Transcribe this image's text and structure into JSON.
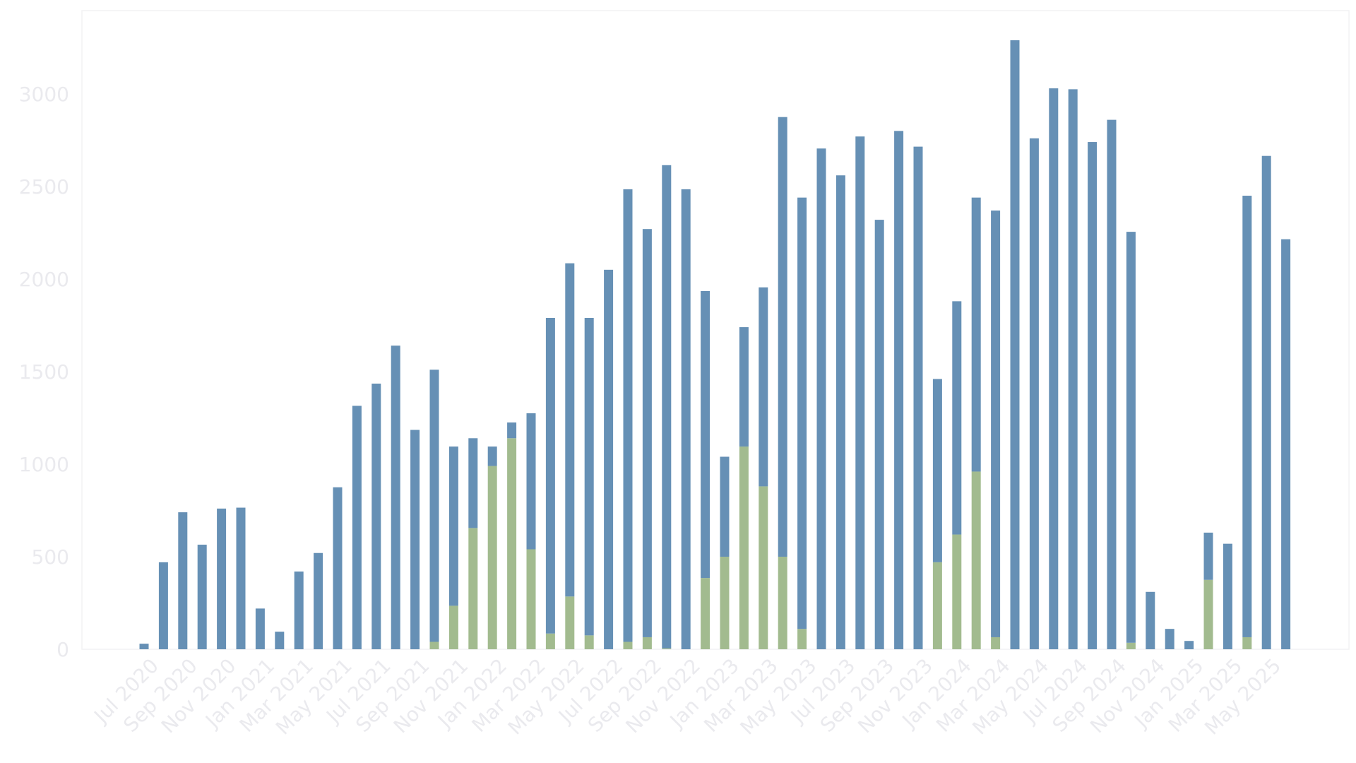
{
  "chart_data": {
    "type": "bar",
    "stacked": true,
    "title": "",
    "xlabel": "",
    "ylabel": "",
    "ylim": [
      0,
      3450
    ],
    "yticks": [
      0,
      500,
      1000,
      1500,
      2000,
      2500,
      3000
    ],
    "grid": false,
    "legend": "none",
    "categories": [
      "Jul 2020",
      "Aug 2020",
      "Sep 2020",
      "Oct 2020",
      "Nov 2020",
      "Dec 2020",
      "Jan 2021",
      "Feb 2021",
      "Mar 2021",
      "Apr 2021",
      "May 2021",
      "Jun 2021",
      "Jul 2021",
      "Aug 2021",
      "Sep 2021",
      "Oct 2021",
      "Nov 2021",
      "Dec 2021",
      "Jan 2022",
      "Feb 2022",
      "Mar 2022",
      "Apr 2022",
      "May 2022",
      "Jun 2022",
      "Jul 2022",
      "Aug 2022",
      "Sep 2022",
      "Oct 2022",
      "Nov 2022",
      "Dec 2022",
      "Jan 2023",
      "Feb 2023",
      "Mar 2023",
      "Apr 2023",
      "May 2023",
      "Jun 2023",
      "Jul 2023",
      "Aug 2023",
      "Sep 2023",
      "Oct 2023",
      "Nov 2023",
      "Dec 2023",
      "Jan 2024",
      "Feb 2024",
      "Mar 2024",
      "Apr 2024",
      "May 2024",
      "Jun 2024",
      "Jul 2024",
      "Aug 2024",
      "Sep 2024",
      "Oct 2024",
      "Nov 2024",
      "Dec 2024",
      "Jan 2025",
      "Feb 2025",
      "Mar 2025",
      "Apr 2025",
      "May 2025",
      "Jun 2025"
    ],
    "tick_labels": [
      "Jul 2020",
      "Sep 2020",
      "Nov 2020",
      "Jan 2021",
      "Mar 2021",
      "May 2021",
      "Jul 2021",
      "Sep 2021",
      "Nov 2021",
      "Jan 2022",
      "Mar 2022",
      "May 2022",
      "Jul 2022",
      "Sep 2022",
      "Nov 2022",
      "Jan 2023",
      "Mar 2023",
      "May 2023",
      "Jul 2023",
      "Sep 2023",
      "Nov 2023",
      "Jan 2024",
      "Mar 2024",
      "May 2024",
      "Jul 2024",
      "Sep 2024",
      "Nov 2024",
      "Jan 2025",
      "Mar 2025",
      "May 2025"
    ],
    "series": [
      {
        "color": "#a2bb8f",
        "values": [
          0,
          0,
          0,
          0,
          0,
          0,
          0,
          0,
          0,
          0,
          0,
          0,
          0,
          0,
          0,
          40,
          235,
          655,
          990,
          1140,
          540,
          85,
          285,
          75,
          0,
          40,
          65,
          5,
          0,
          385,
          500,
          1095,
          880,
          500,
          110,
          0,
          0,
          0,
          0,
          0,
          0,
          470,
          620,
          960,
          65,
          0,
          0,
          0,
          0,
          0,
          0,
          35,
          0,
          0,
          0,
          375,
          0,
          65,
          0,
          0
        ]
      },
      {
        "color": "#6690b5",
        "values": [
          30,
          470,
          740,
          565,
          760,
          765,
          220,
          95,
          420,
          520,
          875,
          1315,
          1435,
          1640,
          1185,
          1470,
          860,
          485,
          105,
          85,
          735,
          1705,
          1800,
          1715,
          2050,
          2445,
          2205,
          2610,
          2485,
          1550,
          540,
          645,
          1075,
          2375,
          2330,
          2705,
          2560,
          2770,
          2320,
          2800,
          2715,
          990,
          1260,
          1480,
          2305,
          3290,
          2760,
          3030,
          3025,
          2740,
          2860,
          2220,
          310,
          110,
          45,
          255,
          570,
          2385,
          2665,
          2215
        ]
      }
    ]
  }
}
